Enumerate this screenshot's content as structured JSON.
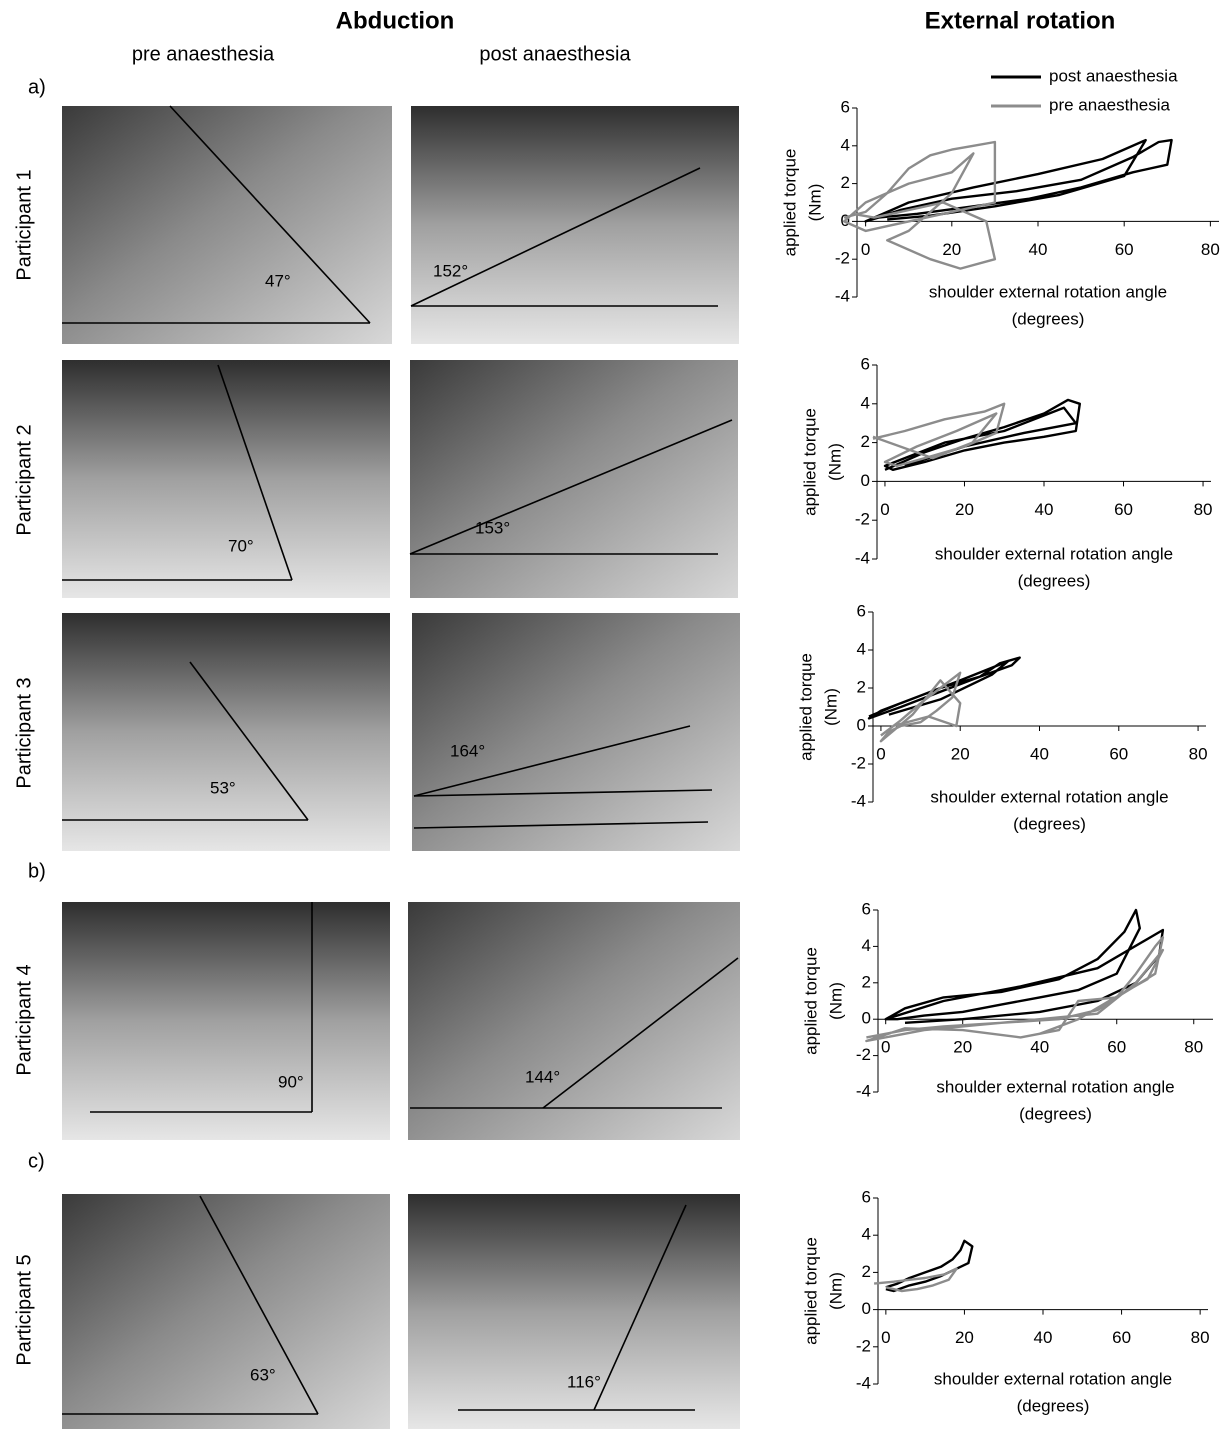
{
  "header": {
    "abduction": "Abduction",
    "external_rotation": "External rotation",
    "pre": "pre anaesthesia",
    "post": "post anaesthesia"
  },
  "panels": [
    "a)",
    "b)",
    "c)"
  ],
  "participants": [
    {
      "name": "Participant 1",
      "pre_angle": "47°",
      "post_angle": "152°"
    },
    {
      "name": "Participant 2",
      "pre_angle": "70°",
      "post_angle": "153°"
    },
    {
      "name": "Participant 3",
      "pre_angle": "53°",
      "post_angle": "164°"
    },
    {
      "name": "Participant 4",
      "pre_angle": "90°",
      "post_angle": "144°"
    },
    {
      "name": "Participant 5",
      "pre_angle": "63°",
      "post_angle": "116°"
    }
  ],
  "chart_data": [
    {
      "type": "line",
      "ylabel": [
        "applied torque",
        "(Nm)"
      ],
      "xlabel": [
        "shoulder external rotation angle",
        "(degrees)"
      ],
      "xlim": [
        -2,
        82
      ],
      "ylim": [
        -4,
        6
      ],
      "xticks": [
        0,
        20,
        40,
        60,
        80
      ],
      "yticks": [
        -4,
        -2,
        0,
        2,
        4,
        6
      ],
      "legend": "top-right",
      "series": [
        {
          "name": "post anaesthesia",
          "color": "#000000",
          "x": [
            0,
            8,
            20,
            35,
            50,
            62,
            68,
            71,
            70,
            62,
            50,
            38,
            25,
            12,
            3,
            0,
            10,
            25,
            40,
            55,
            65,
            60,
            45,
            30,
            15,
            5
          ],
          "values": [
            0,
            0.6,
            1.2,
            1.6,
            2.2,
            3.4,
            4.2,
            4.3,
            3,
            2.6,
            1.8,
            1.2,
            0.8,
            0.4,
            0.2,
            0,
            1,
            1.8,
            2.5,
            3.3,
            4.3,
            2.4,
            1.4,
            0.8,
            0.3,
            0.1
          ]
        },
        {
          "name": "pre anaesthesia",
          "color": "#8c8c8c",
          "x": [
            -5,
            0,
            5,
            10,
            15,
            20,
            25,
            30,
            30,
            20,
            10,
            0,
            -5,
            0,
            10,
            20,
            25,
            20,
            10,
            5,
            15,
            22,
            30,
            28,
            18,
            8,
            2,
            -3
          ],
          "values": [
            0.2,
            0.5,
            1.5,
            2.8,
            3.5,
            3.8,
            4,
            4.2,
            1,
            0.5,
            0,
            -0.5,
            0,
            1,
            2,
            2.6,
            3.6,
            1.5,
            -0.5,
            -1,
            -2,
            -2.5,
            -2,
            0,
            1,
            0.5,
            0.2,
            0.4
          ]
        }
      ]
    },
    {
      "type": "line",
      "ylabel": [
        "applied torque",
        "(Nm)"
      ],
      "xlabel": [
        "shoulder external rotation angle",
        "(degrees)"
      ],
      "xlim": [
        -2,
        82
      ],
      "ylim": [
        -4,
        6
      ],
      "xticks": [
        0,
        20,
        40,
        60,
        80
      ],
      "yticks": [
        -4,
        -2,
        0,
        2,
        4,
        6
      ],
      "series": [
        {
          "color": "#000000",
          "x": [
            0,
            10,
            20,
            30,
            40,
            46,
            49,
            48,
            40,
            30,
            20,
            10,
            2,
            0,
            15,
            30,
            45,
            48,
            35,
            20,
            5
          ],
          "values": [
            0.6,
            1.5,
            2.2,
            2.8,
            3.5,
            4.2,
            4,
            2.6,
            2.3,
            2,
            1.6,
            1,
            0.6,
            0.8,
            2,
            2.6,
            3.8,
            3,
            2.5,
            1.8,
            0.8
          ]
        },
        {
          "color": "#8c8c8c",
          "x": [
            -3,
            5,
            15,
            25,
            30,
            28,
            20,
            10,
            3,
            0,
            8,
            18,
            28,
            22,
            12,
            -3
          ],
          "values": [
            2.2,
            2.6,
            3.2,
            3.6,
            4,
            2.5,
            1.8,
            1.2,
            0.8,
            1,
            1.8,
            2.6,
            3.5,
            2,
            1.2,
            2.3
          ]
        }
      ]
    },
    {
      "type": "line",
      "ylabel": [
        "applied torque",
        "(Nm)"
      ],
      "xlabel": [
        "shoulder external rotation angle",
        "(degrees)"
      ],
      "xlim": [
        -2,
        82
      ],
      "ylim": [
        -4,
        6
      ],
      "xticks": [
        0,
        20,
        40,
        60,
        80
      ],
      "yticks": [
        -4,
        -2,
        0,
        2,
        4,
        6
      ],
      "series": [
        {
          "color": "#000000",
          "x": [
            -3,
            5,
            15,
            25,
            30,
            35,
            33,
            25,
            15,
            5,
            -3,
            0,
            10,
            20,
            32,
            28,
            15,
            2
          ],
          "values": [
            0.5,
            1.2,
            2,
            2.6,
            3.3,
            3.6,
            3.2,
            2.6,
            1.8,
            1,
            0.4,
            0.8,
            1.6,
            2.4,
            3.4,
            2.7,
            1.4,
            0.6
          ]
        },
        {
          "color": "#8c8c8c",
          "x": [
            0,
            5,
            10,
            15,
            20,
            18,
            14,
            10,
            5,
            2,
            0,
            8,
            15,
            20,
            19,
            12,
            3
          ],
          "values": [
            -0.5,
            0.3,
            1.2,
            2,
            2.8,
            1.5,
            0.8,
            0.2,
            0,
            -0.3,
            -0.8,
            0.6,
            2.4,
            1.2,
            0,
            0.5,
            0
          ]
        }
      ]
    },
    {
      "type": "line",
      "ylabel": [
        "applied torque",
        "(Nm)"
      ],
      "xlabel": [
        "shoulder external rotation angle",
        "(degrees)"
      ],
      "xlim": [
        -2,
        85
      ],
      "ylim": [
        -4,
        6
      ],
      "xticks": [
        0,
        20,
        40,
        60,
        80
      ],
      "yticks": [
        -4,
        -2,
        0,
        2,
        4,
        6
      ],
      "series": [
        {
          "color": "#000000",
          "x": [
            0,
            5,
            15,
            30,
            45,
            55,
            62,
            65,
            66,
            60,
            50,
            40,
            30,
            20,
            10,
            3,
            0,
            15,
            35,
            55,
            72,
            71,
            65,
            55,
            40,
            20,
            5
          ],
          "values": [
            0,
            0.6,
            1.2,
            1.5,
            2.2,
            3.3,
            4.8,
            6,
            5,
            2.5,
            1.6,
            1.2,
            0.8,
            0.4,
            0.2,
            0,
            0,
            1,
            1.8,
            2.8,
            4.9,
            3.5,
            2,
            1,
            0.4,
            0,
            -0.2
          ]
        },
        {
          "color": "#8c8c8c",
          "x": [
            -5,
            5,
            15,
            30,
            45,
            55,
            60,
            65,
            70,
            72,
            70,
            60,
            50,
            45,
            35,
            20,
            5,
            -5,
            10,
            30,
            55,
            65,
            72,
            68,
            58,
            50,
            40
          ],
          "values": [
            -1,
            -0.6,
            -0.4,
            -0.2,
            0,
            0.5,
            1.2,
            2.5,
            4,
            4.5,
            2.5,
            1.2,
            1,
            -0.6,
            -1,
            -0.6,
            -0.5,
            -1.2,
            -0.6,
            -0.2,
            0.3,
            2,
            3.8,
            2.2,
            1,
            0,
            -0.8
          ]
        }
      ]
    },
    {
      "type": "line",
      "ylabel": [
        "applied torque",
        "(Nm)"
      ],
      "xlabel": [
        "shoulder external rotation angle",
        "(degrees)"
      ],
      "xlim": [
        -2,
        82
      ],
      "ylim": [
        -4,
        6
      ],
      "xticks": [
        0,
        20,
        40,
        60,
        80
      ],
      "yticks": [
        -4,
        -2,
        0,
        2,
        4,
        6
      ],
      "series": [
        {
          "color": "#000000",
          "x": [
            0,
            3,
            6,
            10,
            14,
            17,
            19,
            20,
            22,
            21,
            18,
            14,
            10,
            6,
            2,
            0
          ],
          "values": [
            1.2,
            1.4,
            1.7,
            2,
            2.3,
            2.7,
            3.2,
            3.7,
            3.4,
            2.5,
            2.2,
            1.8,
            1.5,
            1.3,
            1,
            1.1
          ]
        },
        {
          "color": "#8c8c8c",
          "x": [
            -3,
            2,
            6,
            10,
            15,
            18,
            16,
            12,
            8,
            4,
            0
          ],
          "values": [
            1.4,
            1.5,
            1.6,
            1.7,
            1.9,
            2.2,
            1.6,
            1.3,
            1.1,
            1,
            1.2
          ]
        }
      ]
    }
  ]
}
